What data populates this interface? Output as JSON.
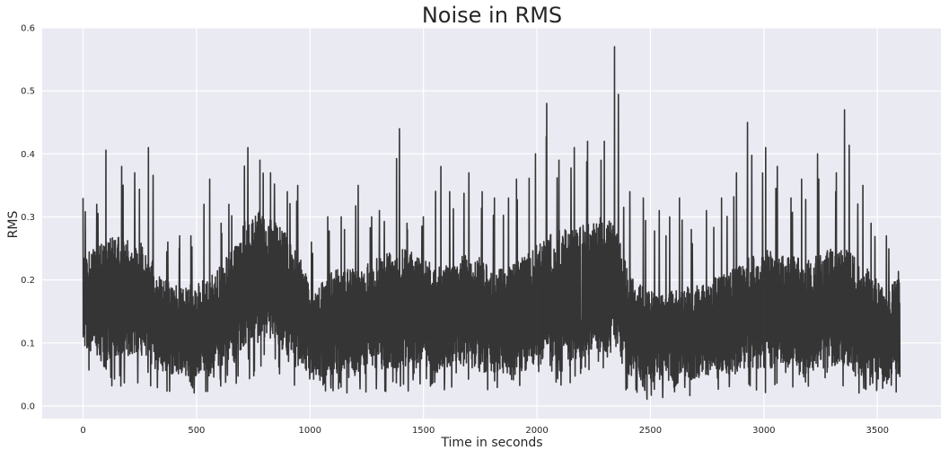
{
  "chart_data": {
    "type": "line",
    "title": "Noise in RMS",
    "xlabel": "Time in seconds",
    "ylabel": "RMS",
    "xlim": [
      -180,
      3780
    ],
    "ylim": [
      -0.02,
      0.6
    ],
    "x_ticks": [
      0,
      500,
      1000,
      1500,
      2000,
      2500,
      3000,
      3500
    ],
    "y_ticks": [
      0.0,
      0.1,
      0.2,
      0.3,
      0.4,
      0.5,
      0.6
    ],
    "x_tick_labels": [
      "0",
      "500",
      "1000",
      "1500",
      "2000",
      "2500",
      "3000",
      "3500"
    ],
    "y_tick_labels": [
      "0.0",
      "0.1",
      "0.2",
      "0.3",
      "0.4",
      "0.5",
      "0.6"
    ],
    "grid": true,
    "line_color": "#2b2b2b",
    "background_color": "#eaeaf2",
    "grid_color": "#ffffff",
    "series": [
      {
        "x": [
          0,
          60,
          120,
          180,
          240,
          300,
          360,
          420,
          480,
          540,
          600,
          660,
          720,
          780,
          840,
          900,
          960,
          1020,
          1080,
          1140,
          1200,
          1260,
          1320,
          1380,
          1440,
          1500,
          1560,
          1620,
          1680,
          1740,
          1800,
          1860,
          1920,
          1980,
          2040,
          2100,
          2160,
          2220,
          2280,
          2340,
          2400,
          2460,
          2520,
          2580,
          2640,
          2700,
          2760,
          2820,
          2880,
          2940,
          3000,
          3060,
          3120,
          3180,
          3240,
          3300,
          3360,
          3420,
          3480,
          3540,
          3600
        ],
        "min": [
          0.04,
          0.03,
          0.02,
          0.03,
          0.03,
          0.03,
          0.02,
          0.02,
          0.02,
          0.02,
          0.02,
          0.03,
          0.04,
          0.04,
          0.04,
          0.03,
          0.02,
          0.01,
          0.02,
          0.02,
          0.02,
          0.02,
          0.02,
          0.02,
          0.02,
          0.02,
          0.02,
          0.03,
          0.03,
          0.03,
          0.02,
          0.02,
          0.02,
          0.02,
          0.02,
          0.02,
          0.03,
          0.03,
          0.03,
          0.06,
          0.02,
          0.01,
          0.01,
          0.01,
          0.01,
          0.01,
          0.02,
          0.02,
          0.02,
          0.03,
          0.02,
          0.03,
          0.03,
          0.02,
          0.03,
          0.03,
          0.02,
          0.02,
          0.01,
          0.01,
          0.02
        ],
        "lower": [
          0.09,
          0.08,
          0.07,
          0.08,
          0.08,
          0.06,
          0.05,
          0.05,
          0.05,
          0.05,
          0.06,
          0.07,
          0.1,
          0.11,
          0.1,
          0.08,
          0.06,
          0.04,
          0.05,
          0.05,
          0.05,
          0.05,
          0.05,
          0.06,
          0.06,
          0.06,
          0.05,
          0.06,
          0.06,
          0.06,
          0.05,
          0.05,
          0.05,
          0.06,
          0.07,
          0.07,
          0.07,
          0.08,
          0.08,
          0.1,
          0.05,
          0.04,
          0.04,
          0.04,
          0.04,
          0.04,
          0.05,
          0.05,
          0.05,
          0.06,
          0.06,
          0.06,
          0.06,
          0.05,
          0.06,
          0.06,
          0.06,
          0.05,
          0.04,
          0.04,
          0.05
        ],
        "upper": [
          0.24,
          0.26,
          0.28,
          0.26,
          0.27,
          0.24,
          0.2,
          0.19,
          0.2,
          0.2,
          0.22,
          0.25,
          0.3,
          0.31,
          0.3,
          0.27,
          0.24,
          0.18,
          0.21,
          0.22,
          0.22,
          0.23,
          0.24,
          0.25,
          0.25,
          0.24,
          0.22,
          0.23,
          0.24,
          0.24,
          0.22,
          0.22,
          0.23,
          0.25,
          0.27,
          0.28,
          0.28,
          0.29,
          0.3,
          0.29,
          0.22,
          0.19,
          0.18,
          0.18,
          0.19,
          0.19,
          0.2,
          0.21,
          0.22,
          0.24,
          0.25,
          0.24,
          0.24,
          0.23,
          0.24,
          0.25,
          0.25,
          0.23,
          0.21,
          0.18,
          0.22
        ],
        "peak": [
          0.33,
          0.32,
          0.45,
          0.38,
          0.37,
          0.41,
          0.26,
          0.27,
          0.27,
          0.36,
          0.29,
          0.32,
          0.41,
          0.39,
          0.37,
          0.34,
          0.35,
          0.26,
          0.3,
          0.3,
          0.35,
          0.3,
          0.31,
          0.44,
          0.29,
          0.3,
          0.38,
          0.34,
          0.37,
          0.34,
          0.33,
          0.33,
          0.36,
          0.4,
          0.48,
          0.39,
          0.41,
          0.42,
          0.42,
          0.57,
          0.34,
          0.33,
          0.31,
          0.3,
          0.33,
          0.28,
          0.31,
          0.33,
          0.37,
          0.45,
          0.41,
          0.38,
          0.33,
          0.36,
          0.4,
          0.37,
          0.47,
          0.35,
          0.29,
          0.27,
          0.35
        ]
      }
    ]
  }
}
